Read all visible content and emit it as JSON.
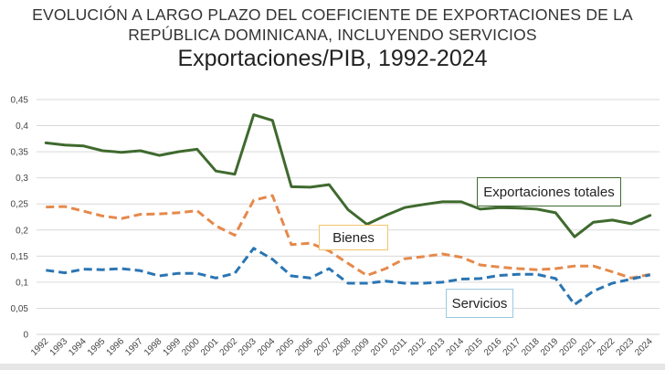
{
  "titles": {
    "line1": "EVOLUCIÓN A LARGO PLAZO DEL COEFICIENTE DE EXPORTACIONES DE LA",
    "line2": "REPÚBLICA DOMINICANA, INCLUYENDO SERVICIOS",
    "line3": "Exportaciones/PIB, 1992-2024"
  },
  "colors": {
    "total": "#3f6a2e",
    "bienes": "#e5894b",
    "servicios": "#2a75b3",
    "grid": "#d9d9d9",
    "total_box_border": "#3f6a2e",
    "bienes_box_border": "#f2c66d",
    "servicios_box_border": "#9ec8e0"
  },
  "chart_data": {
    "type": "line",
    "x": [
      1992,
      1993,
      1994,
      1995,
      1996,
      1997,
      1998,
      1999,
      2000,
      2001,
      2002,
      2003,
      2004,
      2005,
      2006,
      2007,
      2008,
      2009,
      2010,
      2011,
      2012,
      2013,
      2014,
      2015,
      2016,
      2017,
      2018,
      2019,
      2020,
      2021,
      2022,
      2023,
      2024
    ],
    "ylim": [
      0,
      0.45
    ],
    "yticks": [
      "0",
      "0,05",
      "0,1",
      "0,15",
      "0,2",
      "0,25",
      "0,3",
      "0,35",
      "0,4",
      "0,45"
    ],
    "grid": true,
    "series": [
      {
        "name": "Exportaciones totales",
        "style": "solid",
        "values": [
          0.367,
          0.363,
          0.361,
          0.352,
          0.349,
          0.352,
          0.343,
          0.35,
          0.355,
          0.313,
          0.307,
          0.421,
          0.41,
          0.283,
          0.282,
          0.287,
          0.239,
          0.211,
          0.228,
          0.243,
          0.249,
          0.254,
          0.254,
          0.24,
          0.243,
          0.242,
          0.24,
          0.233,
          0.187,
          0.215,
          0.219,
          0.212,
          0.228
        ]
      },
      {
        "name": "Bienes",
        "style": "dashed",
        "values": [
          0.244,
          0.245,
          0.236,
          0.227,
          0.222,
          0.23,
          0.231,
          0.233,
          0.237,
          0.208,
          0.19,
          0.257,
          0.266,
          0.172,
          0.175,
          0.16,
          0.136,
          0.113,
          0.126,
          0.145,
          0.149,
          0.154,
          0.148,
          0.133,
          0.129,
          0.126,
          0.124,
          0.126,
          0.131,
          0.131,
          0.12,
          0.108,
          0.115
        ]
      },
      {
        "name": "Servicios",
        "style": "dashed",
        "values": [
          0.123,
          0.118,
          0.125,
          0.124,
          0.126,
          0.122,
          0.112,
          0.117,
          0.117,
          0.108,
          0.117,
          0.165,
          0.144,
          0.112,
          0.108,
          0.126,
          0.098,
          0.098,
          0.102,
          0.098,
          0.098,
          0.1,
          0.106,
          0.107,
          0.113,
          0.115,
          0.115,
          0.107,
          0.057,
          0.083,
          0.098,
          0.106,
          0.114
        ]
      }
    ]
  }
}
